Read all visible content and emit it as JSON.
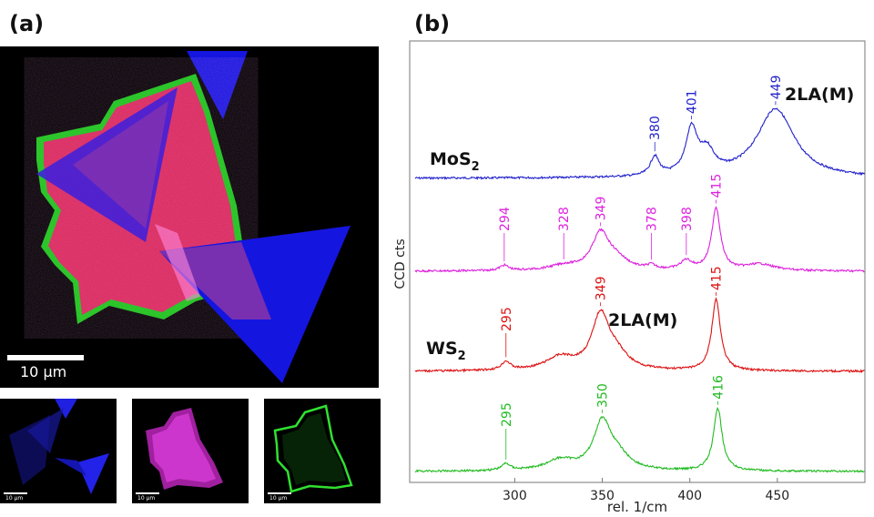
{
  "panels": {
    "a_label": "(a)",
    "b_label": "(b)"
  },
  "micrograph": {
    "main_scale_label": "10 µm",
    "small_scale_label": "10 µm"
  },
  "colors": {
    "mos2": "#2222cc",
    "ws2_magenta": "#dd22dd",
    "ws2_red": "#dd1111",
    "ws2_green": "#22bb22"
  },
  "chart_data": {
    "type": "line",
    "xlabel": "rel. 1/cm",
    "ylabel": "CCD cts",
    "xlim": [
      240,
      500
    ],
    "xticks": [
      "300",
      "350",
      "400",
      "450"
    ],
    "yticks_shown": false,
    "series": [
      {
        "name": "MoS2",
        "color": "#2222cc",
        "baseline": 0.0,
        "peaks": [
          {
            "x": 380,
            "height": 0.26,
            "width": 3
          },
          {
            "x": 401,
            "height": 0.62,
            "width": 4
          },
          {
            "x": 410,
            "height": 0.3,
            "width": 5
          },
          {
            "x": 449,
            "height": 0.95,
            "width": 13
          }
        ],
        "labels": [
          "380",
          "401",
          "449"
        ],
        "label_x": [
          380,
          401,
          449
        ]
      },
      {
        "name": "",
        "color": "#dd22dd",
        "baseline": 0.0,
        "peaks": [
          {
            "x": 294,
            "height": 0.08,
            "width": 3
          },
          {
            "x": 328,
            "height": 0.07,
            "width": 10
          },
          {
            "x": 349,
            "height": 0.55,
            "width": 6
          },
          {
            "x": 358,
            "height": 0.15,
            "width": 8
          },
          {
            "x": 378,
            "height": 0.06,
            "width": 3
          },
          {
            "x": 398,
            "height": 0.14,
            "width": 4
          },
          {
            "x": 415,
            "height": 0.95,
            "width": 3
          },
          {
            "x": 440,
            "height": 0.1,
            "width": 10
          }
        ],
        "labels": [
          "294",
          "328",
          "349",
          "378",
          "398",
          "415"
        ],
        "label_x": [
          294,
          328,
          349,
          378,
          398,
          415
        ]
      },
      {
        "name": "WS2",
        "color": "#dd1111",
        "baseline": 0.0,
        "peaks": [
          {
            "x": 295,
            "height": 0.12,
            "width": 3
          },
          {
            "x": 326,
            "height": 0.18,
            "width": 10
          },
          {
            "x": 349,
            "height": 0.75,
            "width": 6
          },
          {
            "x": 358,
            "height": 0.2,
            "width": 8
          },
          {
            "x": 415,
            "height": 1.0,
            "width": 3
          }
        ],
        "labels": [
          "295",
          "349",
          "415"
        ],
        "label_x": [
          295,
          349,
          415
        ]
      },
      {
        "name": "",
        "color": "#22bb22",
        "baseline": 0.0,
        "peaks": [
          {
            "x": 295,
            "height": 0.1,
            "width": 3
          },
          {
            "x": 326,
            "height": 0.16,
            "width": 10
          },
          {
            "x": 350,
            "height": 0.72,
            "width": 6
          },
          {
            "x": 359,
            "height": 0.2,
            "width": 8
          },
          {
            "x": 416,
            "height": 0.95,
            "width": 3
          }
        ],
        "labels": [
          "295",
          "350",
          "416"
        ],
        "label_x": [
          295,
          350,
          416
        ]
      }
    ],
    "annotations": [
      {
        "text": "2LA(M)",
        "near_series": "MoS2"
      },
      {
        "text": "2LA(M)",
        "near_series": "WS2"
      }
    ],
    "series_names_display": [
      {
        "main": "MoS",
        "sub": "2"
      },
      {
        "main": "WS",
        "sub": "2"
      }
    ]
  }
}
